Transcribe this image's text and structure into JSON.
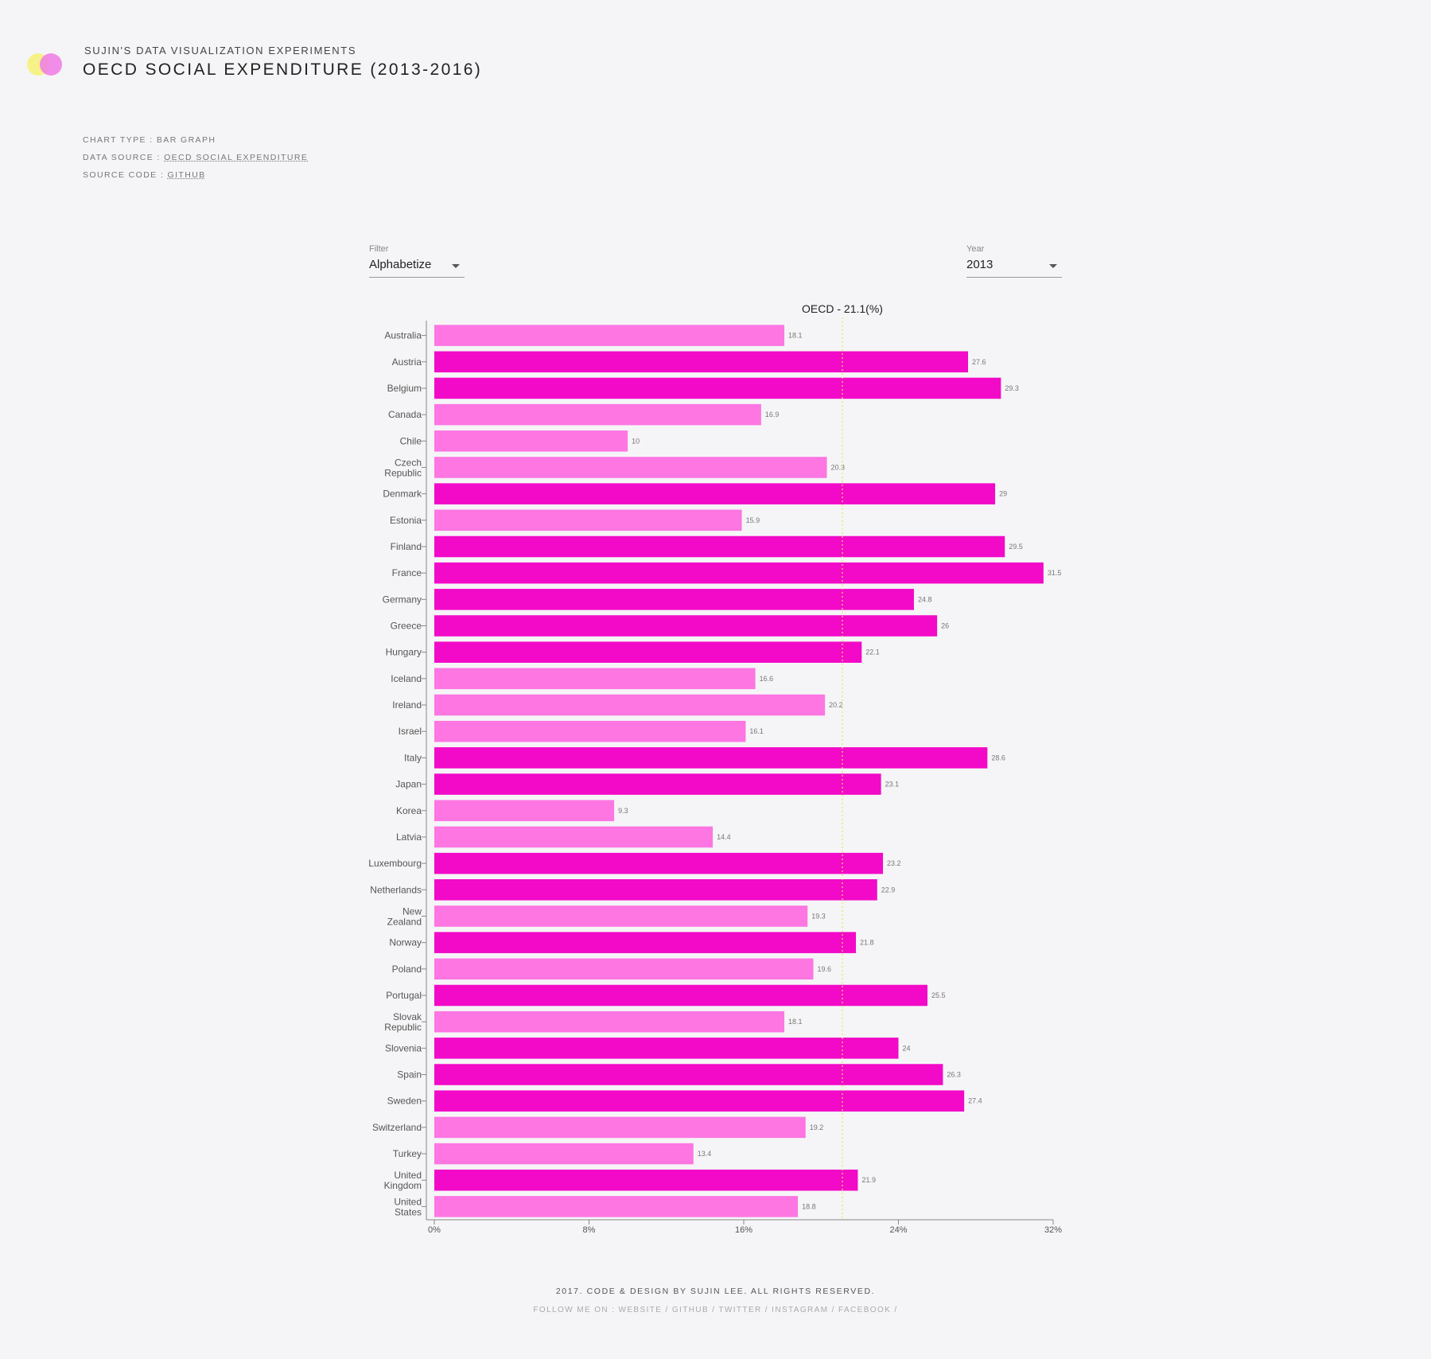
{
  "header": {
    "supertitle": "SUJIN'S DATA VISUALIZATION EXPERIMENTS",
    "title": "OECD SOCIAL EXPENDITURE (2013-2016)"
  },
  "meta": {
    "chart_type_label": "CHART TYPE : BAR GRAPH",
    "data_source_label": "DATA SOURCE : ",
    "data_source_link": "OECD SOCIAL EXPENDITURE",
    "source_code_label": "SOURCE CODE : ",
    "source_code_link": "GITHUB"
  },
  "controls": {
    "filter_label": "Filter",
    "filter_value": "Alphabetize",
    "year_label": "Year",
    "year_value": "2013"
  },
  "colors": {
    "above_average": "#f20ac8",
    "below_average": "#fd76e2",
    "average_line": "#e6e660",
    "axis": "#888888"
  },
  "chart_data": {
    "type": "bar",
    "orientation": "horizontal",
    "average_label": "OECD - 21.1(%)",
    "average_value": 21.1,
    "xlim": [
      0,
      32
    ],
    "x_ticks": [
      "0%",
      "8%",
      "16%",
      "24%",
      "32%"
    ],
    "x_tick_values": [
      0,
      8,
      16,
      24,
      32
    ],
    "categories": [
      "Australia",
      "Austria",
      "Belgium",
      "Canada",
      "Chile",
      "Czech Republic",
      "Denmark",
      "Estonia",
      "Finland",
      "France",
      "Germany",
      "Greece",
      "Hungary",
      "Iceland",
      "Ireland",
      "Israel",
      "Italy",
      "Japan",
      "Korea",
      "Latvia",
      "Luxembourg",
      "Netherlands",
      "New Zealand",
      "Norway",
      "Poland",
      "Portugal",
      "Slovak Republic",
      "Slovenia",
      "Spain",
      "Sweden",
      "Switzerland",
      "Turkey",
      "United Kingdom",
      "United States"
    ],
    "values": [
      18.1,
      27.6,
      29.3,
      16.9,
      10,
      20.3,
      29,
      15.9,
      29.5,
      31.5,
      24.8,
      26,
      22.1,
      16.6,
      20.2,
      16.1,
      28.6,
      23.1,
      9.3,
      14.4,
      23.2,
      22.9,
      19.3,
      21.8,
      19.6,
      25.5,
      18.1,
      24,
      26.3,
      27.4,
      19.2,
      13.4,
      21.9,
      18.8
    ]
  },
  "footer": {
    "credit": "2017. CODE & DESIGN BY SUJIN LEE. ALL RIGHTS RESERVED.",
    "follow": "FOLLOW ME ON : WEBSITE / GITHUB / TWITTER / INSTAGRAM / FACEBOOK /"
  }
}
